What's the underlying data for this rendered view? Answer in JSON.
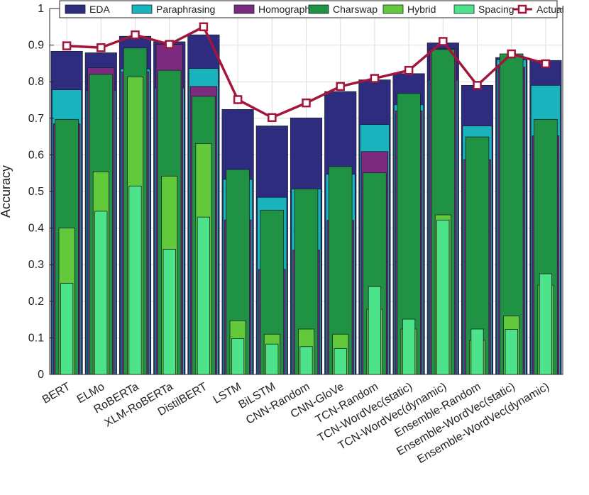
{
  "chart_data": {
    "type": "bar",
    "title": "",
    "xlabel": "",
    "ylabel": "Accuracy",
    "ylim": [
      0,
      1
    ],
    "yticks": [
      "0",
      "0.1",
      "0.2",
      "0.3",
      "0.4",
      "0.5",
      "0.6",
      "0.7",
      "0.8",
      "0.9",
      "1"
    ],
    "grid": true,
    "legend_position": "top",
    "categories": [
      "BERT",
      "ELMo",
      "RoBERTa",
      "XLM-RoBERTa",
      "DistilBERT",
      "LSTM",
      "BiLSTM",
      "CNN-Random",
      "CNN-GloVe",
      "TCN-Random",
      "TCN-WordVec(static)",
      "TCN-WordVec(dynamic)",
      "Ensemble-Random",
      "Ensemble-WordVec(static)",
      "Ensemble-WordVec(dynamic)"
    ],
    "series": [
      {
        "name": "EDA",
        "color": "#2e2c7e",
        "kind": "bar",
        "values": [
          0.883,
          0.879,
          0.924,
          0.909,
          0.928,
          0.724,
          0.679,
          0.701,
          0.773,
          0.805,
          0.822,
          0.906,
          0.79,
          0.866,
          0.858
        ]
      },
      {
        "name": "Paraphrasing",
        "color": "#18b3bd",
        "kind": "bar",
        "values": [
          0.778,
          0.776,
          0.835,
          0.783,
          0.836,
          0.533,
          0.484,
          0.507,
          0.547,
          0.683,
          0.737,
          0.804,
          0.679,
          0.86,
          0.79
        ]
      },
      {
        "name": "Homograph",
        "color": "#7b2a7e",
        "kind": "bar",
        "values": [
          0.685,
          0.838,
          0.827,
          0.902,
          0.787,
          0.422,
          0.287,
          0.34,
          0.421,
          0.609,
          0.72,
          0.89,
          0.587,
          0.84,
          0.652
        ]
      },
      {
        "name": "Charswap",
        "color": "#1f9244",
        "kind": "bar",
        "values": [
          0.697,
          0.82,
          0.892,
          0.831,
          0.76,
          0.56,
          0.449,
          0.507,
          0.568,
          0.551,
          0.768,
          0.888,
          0.649,
          0.876,
          0.697
        ]
      },
      {
        "name": "Hybrid",
        "color": "#62c93a",
        "kind": "bar",
        "values": [
          0.4,
          0.554,
          0.813,
          0.542,
          0.631,
          0.147,
          0.11,
          0.124,
          0.11,
          0.178,
          0.124,
          0.436,
          0.093,
          0.16,
          0.244
        ]
      },
      {
        "name": "Spacing",
        "color": "#4de38a",
        "kind": "bar",
        "values": [
          0.249,
          0.446,
          0.515,
          0.342,
          0.43,
          0.098,
          0.083,
          0.076,
          0.071,
          0.24,
          0.151,
          0.422,
          0.124,
          0.123,
          0.275
        ]
      },
      {
        "name": "Actual",
        "color": "#a3163b",
        "kind": "line",
        "values": [
          0.898,
          0.893,
          0.928,
          0.902,
          0.95,
          0.751,
          0.702,
          0.742,
          0.787,
          0.809,
          0.831,
          0.91,
          0.79,
          0.876,
          0.849
        ]
      }
    ]
  }
}
